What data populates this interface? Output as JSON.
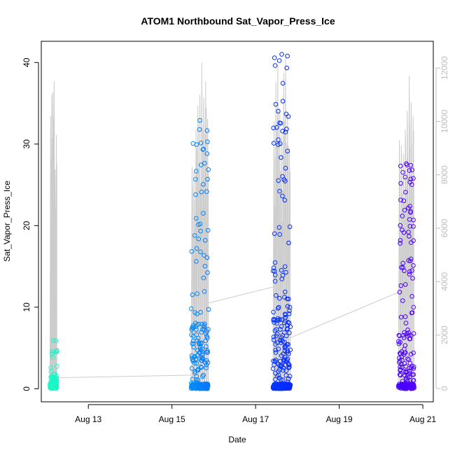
{
  "chart_data": {
    "type": "scatter",
    "title": "ATOM1 Northbound Sat_Vapor_Press_Ice",
    "xlabel": "Date",
    "ylabel": "Sat_Vapor_Press_Ice",
    "x_ticks": [
      "Aug 13",
      "Aug 15",
      "Aug 17",
      "Aug 19",
      "Aug 21"
    ],
    "y_ticks": [
      "0",
      "10",
      "20",
      "30",
      "40"
    ],
    "y_right_ticks": [
      "0",
      "2000",
      "4000",
      "6000",
      "8000",
      "10000",
      "12000"
    ],
    "xlim": [
      "Aug 11 21:00",
      "Aug 21 06:00"
    ],
    "ylim": [
      -1.6,
      42.6
    ],
    "y_right_lim": [
      -500,
      13000
    ],
    "colors": {
      "altitude_line": "#cccccc",
      "point_scale": [
        "#1bffc0",
        "#00c8f0",
        "#0a56ff",
        "#0000ff",
        "#6a00ff"
      ],
      "frame": "#000000",
      "right_axis": "#bdbdbd"
    },
    "legend": "none",
    "grid": false,
    "series": [
      {
        "flight": "Aug 12",
        "time_range": [
          "Aug 12 02:00",
          "Aug 12 06:00"
        ],
        "y_max": 5.9,
        "altitude_peaks": [
          10200,
          11000,
          11100,
          11500,
          8200,
          9500
        ]
      },
      {
        "flight": "Aug 15",
        "time_range": [
          "Aug 15 11:00",
          "Aug 15 21:00"
        ],
        "y_max": 32.9,
        "altitude_peaks": [
          8300,
          8100,
          9700,
          10600,
          11000,
          12200,
          10900,
          11500,
          10100
        ]
      },
      {
        "flight": "Aug 17",
        "time_range": [
          "Aug 17 10:00",
          "Aug 17 20:00"
        ],
        "y_max": 41.0,
        "altitude_peaks": [
          10000,
          11500,
          12100,
          10500,
          9500,
          11800,
          12500,
          10200,
          9000
        ]
      },
      {
        "flight": "Aug 20",
        "time_range": [
          "Aug 20 10:00",
          "Aug 20 19:00"
        ],
        "y_max": 27.6,
        "altitude_peaks": [
          9300,
          9100,
          8800,
          9700,
          10400,
          11700,
          10700,
          10200
        ]
      }
    ],
    "connectors": [
      {
        "from": [
          "Aug 12 06:00",
          400
        ],
        "to": [
          "Aug 15 11:00",
          500
        ]
      },
      {
        "from": [
          "Aug 15 21:00",
          3200
        ],
        "to": [
          "Aug 17 10:00",
          3800
        ]
      },
      {
        "from": [
          "Aug 17 20:00",
          1900
        ],
        "to": [
          "Aug 20 10:00",
          3600
        ]
      }
    ]
  }
}
